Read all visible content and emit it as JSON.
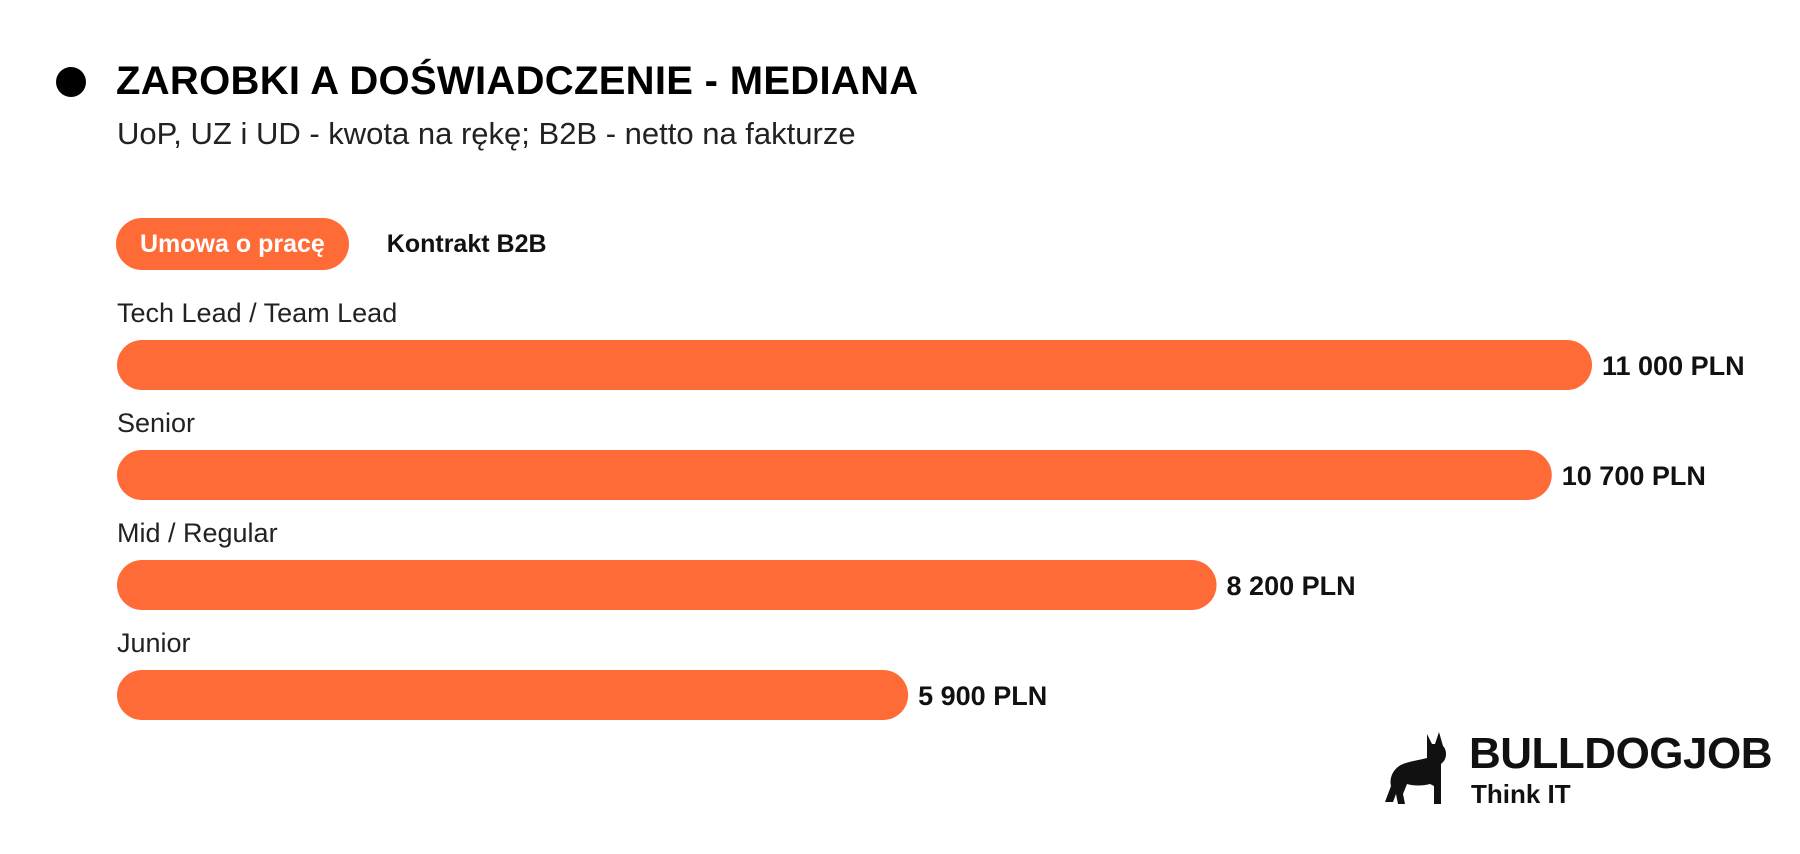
{
  "header": {
    "title": "ZAROBKI A DOŚWIADCZENIE - MEDIANA",
    "subtitle": "UoP, UZ i UD - kwota na rękę; B2B - netto na fakturze"
  },
  "tabs": [
    {
      "label": "Umowa o pracę",
      "active": true
    },
    {
      "label": "Kontrakt B2B",
      "active": false
    }
  ],
  "colors": {
    "bar": "#ff6b37",
    "text": "#111111"
  },
  "chart_data": {
    "type": "bar",
    "orientation": "horizontal",
    "title": "ZAROBKI A DOŚWIADCZENIE - MEDIANA",
    "subtitle": "UoP, UZ i UD - kwota na rękę; B2B - netto na fakturze",
    "categories": [
      "Tech Lead / Team Lead",
      "Senior",
      "Mid / Regular",
      "Junior"
    ],
    "values": [
      11000,
      10700,
      8200,
      5900
    ],
    "value_labels": [
      "11 000 PLN",
      "10 700 PLN",
      "8 200 PLN",
      "5 900 PLN"
    ],
    "unit": "PLN",
    "xlim": [
      0,
      11000
    ],
    "grid": false,
    "legend": "none"
  },
  "brand": {
    "name": "BULLDOGJOB",
    "tagline": "Think IT",
    "icon": "bulldog-icon"
  }
}
